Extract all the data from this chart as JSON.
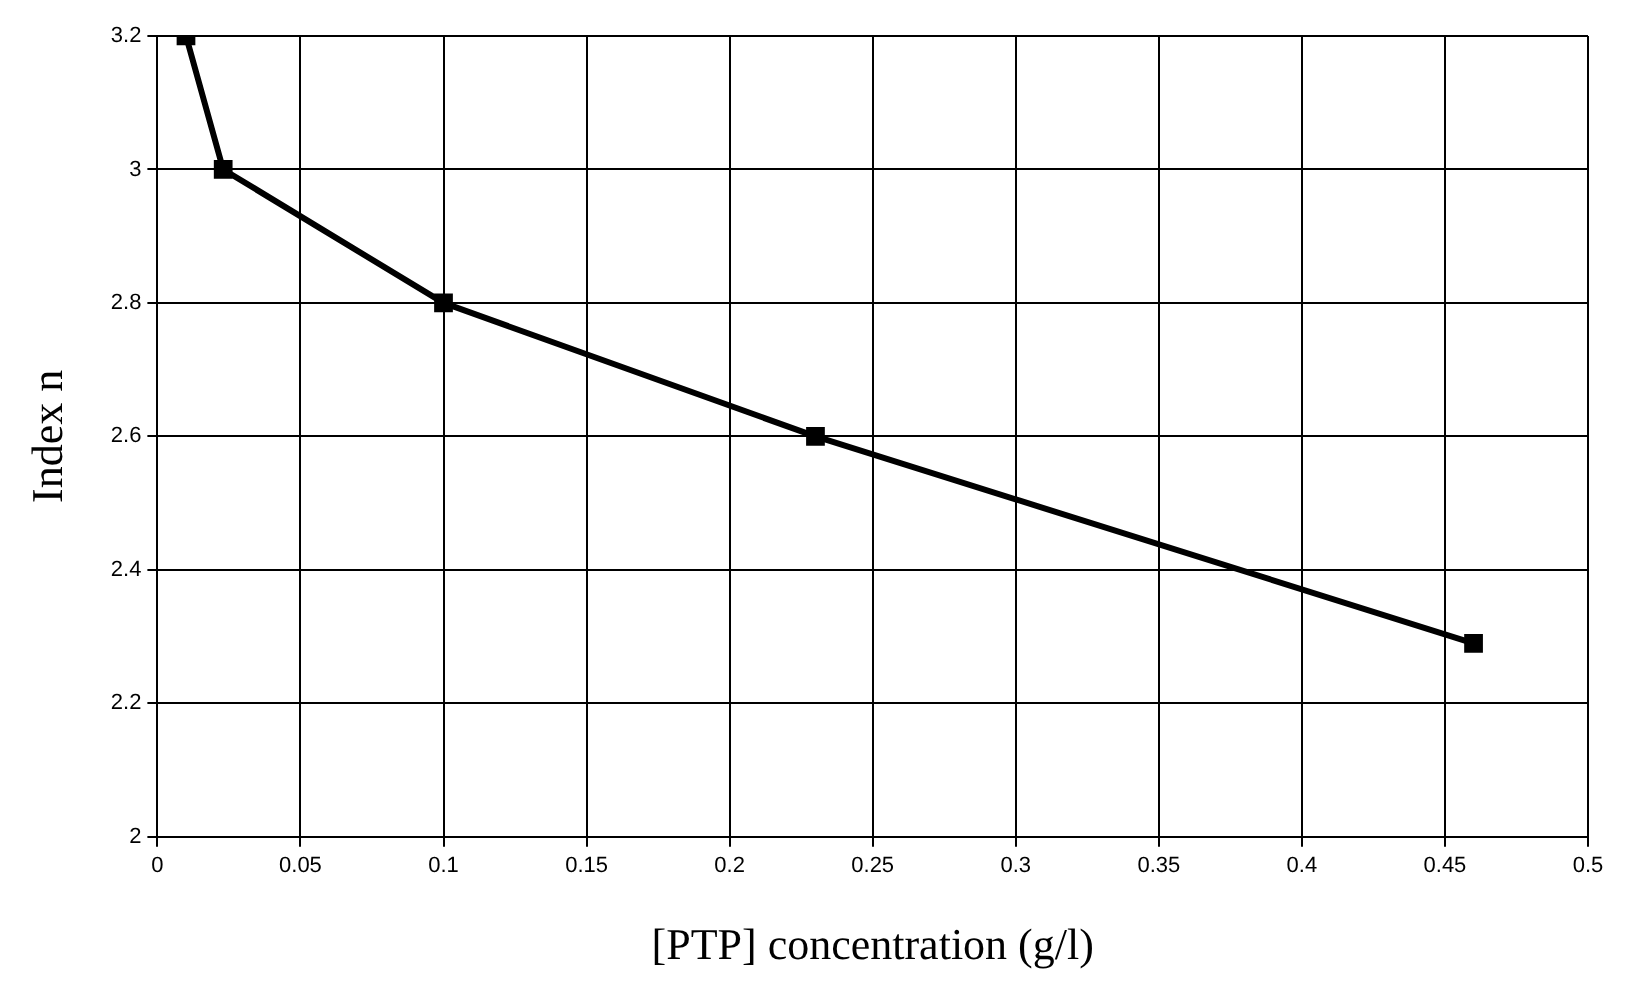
{
  "chart_data": {
    "type": "line",
    "xlabel": "[PTP] concentration (g/l)",
    "ylabel": "Index n",
    "x": [
      0.01,
      0.023,
      0.1,
      0.23,
      0.46
    ],
    "series": [
      {
        "color": "#000000",
        "values": [
          3.2,
          3.0,
          2.8,
          2.6,
          2.29
        ]
      }
    ],
    "xlim": [
      0,
      0.5
    ],
    "xticks": [
      0,
      0.05,
      0.1,
      0.15,
      0.2,
      0.25,
      0.3,
      0.35,
      0.4,
      0.45,
      0.5
    ],
    "ylim": [
      2,
      3.2
    ],
    "yticks": [
      2,
      2.2,
      2.4,
      2.6,
      2.8,
      3,
      3.2
    ],
    "grid": true,
    "legend": false,
    "marker": "square",
    "line_style": "solid"
  }
}
